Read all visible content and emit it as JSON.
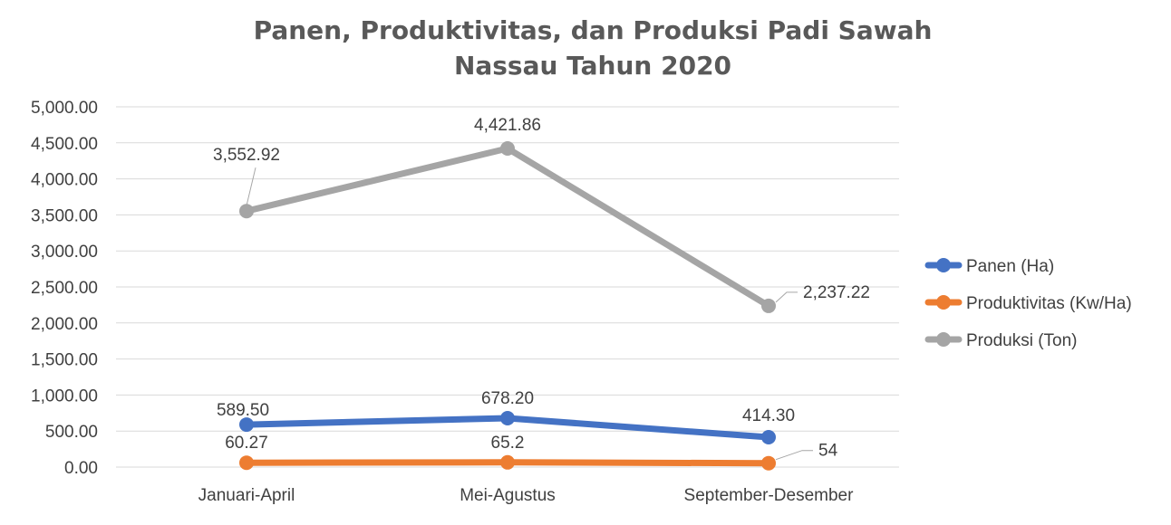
{
  "chart_data": {
    "type": "line",
    "title_lines": [
      "Panen, Produktivitas, dan Produksi Padi Sawah",
      "Nassau Tahun 2020"
    ],
    "categories": [
      "Januari-April",
      "Mei-Agustus",
      "September-Desember"
    ],
    "ylim": [
      0,
      5000
    ],
    "y_ticks": [
      0,
      500,
      1000,
      1500,
      2000,
      2500,
      3000,
      3500,
      4000,
      4500,
      5000
    ],
    "y_tick_labels": [
      "0.00",
      "500.00",
      "1,000.00",
      "1,500.00",
      "2,000.00",
      "2,500.00",
      "3,000.00",
      "3,500.00",
      "4,000.00",
      "4,500.00",
      "5,000.00"
    ],
    "grid": true,
    "legend_position": "right",
    "series": [
      {
        "name": "Panen (Ha)",
        "color": "#4472c4",
        "values": [
          589.5,
          678.2,
          414.3
        ],
        "labels": [
          "589.50",
          "678.20",
          "414.30"
        ]
      },
      {
        "name": "Produktivitas (Kw/Ha)",
        "color": "#ed7d31",
        "values": [
          60.27,
          65.2,
          54
        ],
        "labels": [
          "60.27",
          "65.2",
          "54"
        ]
      },
      {
        "name": "Produksi (Ton)",
        "color": "#a5a5a5",
        "values": [
          3552.92,
          4421.86,
          2237.22
        ],
        "labels": [
          "3,552.92",
          "4,421.86",
          "2,237.22"
        ]
      }
    ]
  }
}
